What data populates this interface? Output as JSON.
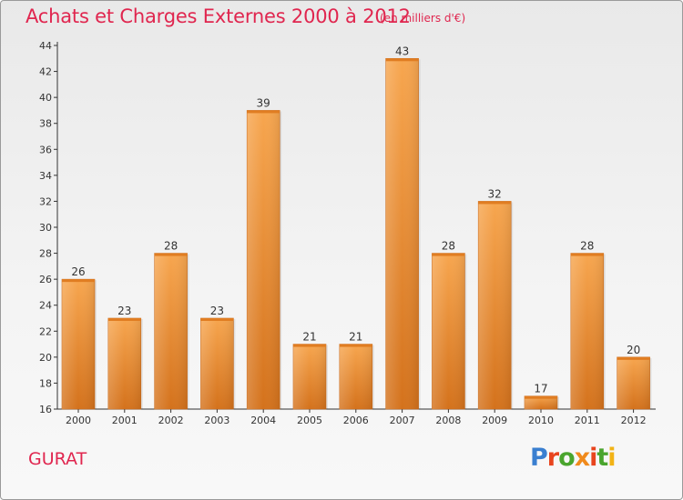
{
  "header": {
    "title": "Achats et Charges Externes 2000 à 2012",
    "subtitle": "(en milliers d'€)"
  },
  "footer": {
    "commune": "GURAT",
    "logo": "Proxiti"
  },
  "colors": {
    "accent": "#e0264f",
    "bar_light": "#f7a64f",
    "bar_dark": "#d8761e",
    "logo_letters": [
      "#3a7fd0",
      "#e8451e",
      "#4aa52e",
      "#f08a1c",
      "#e8451e",
      "#4aa52e",
      "#f2b316"
    ]
  },
  "chart_data": {
    "type": "bar",
    "title": "Achats et Charges Externes 2000 à 2012",
    "subtitle": "(en milliers d'€)",
    "xlabel": "",
    "ylabel": "",
    "categories": [
      "2000",
      "2001",
      "2002",
      "2003",
      "2004",
      "2005",
      "2006",
      "2007",
      "2008",
      "2009",
      "2010",
      "2011",
      "2012"
    ],
    "values": [
      26,
      23,
      28,
      23,
      39,
      21,
      21,
      43,
      28,
      32,
      17,
      28,
      20
    ],
    "ylim": [
      16,
      44
    ],
    "yticks": [
      16,
      18,
      20,
      22,
      24,
      26,
      28,
      30,
      32,
      34,
      36,
      38,
      40,
      42,
      44
    ],
    "grid": false,
    "legend": "none"
  }
}
